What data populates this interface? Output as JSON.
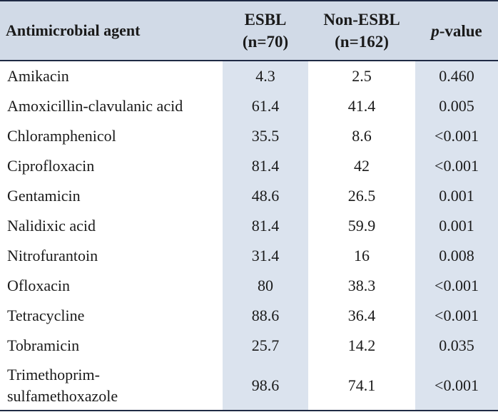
{
  "table": {
    "headers": {
      "agent": "Antimicrobial agent",
      "esbl_line1": "ESBL",
      "esbl_line2": "(n=70)",
      "nonesbl_line1": "Non-ESBL",
      "nonesbl_line2": "(n=162)",
      "pvalue_p": "p",
      "pvalue_rest": "-value"
    },
    "rows": [
      {
        "agent": "Amikacin",
        "esbl": "4.3",
        "nonesbl": "2.5",
        "p": "0.460"
      },
      {
        "agent": "Amoxicillin-clavulanic acid",
        "esbl": "61.4",
        "nonesbl": "41.4",
        "p": "0.005"
      },
      {
        "agent": "Chloramphenicol",
        "esbl": "35.5",
        "nonesbl": "8.6",
        "p": "<0.001"
      },
      {
        "agent": "Ciprofloxacin",
        "esbl": "81.4",
        "nonesbl": "42",
        "p": "<0.001"
      },
      {
        "agent": "Gentamicin",
        "esbl": "48.6",
        "nonesbl": "26.5",
        "p": "0.001"
      },
      {
        "agent": "Nalidixic acid",
        "esbl": "81.4",
        "nonesbl": "59.9",
        "p": "0.001"
      },
      {
        "agent": "Nitrofurantoin",
        "esbl": "31.4",
        "nonesbl": "16",
        "p": "0.008"
      },
      {
        "agent": "Ofloxacin",
        "esbl": "80",
        "nonesbl": "38.3",
        "p": "<0.001"
      },
      {
        "agent": "Tetracycline",
        "esbl": "88.6",
        "nonesbl": "36.4",
        "p": "<0.001"
      },
      {
        "agent": "Tobramicin",
        "esbl": "25.7",
        "nonesbl": "14.2",
        "p": "0.035"
      },
      {
        "agent_line1": "Trimethoprim-",
        "agent_line2": "sulfamethoxazole",
        "esbl": "98.6",
        "nonesbl": "74.1",
        "p": "<0.001"
      }
    ]
  },
  "colors": {
    "header_bg": "#d1dae7",
    "shade_bg": "#dbe3ee",
    "rule": "#1f2a44"
  }
}
